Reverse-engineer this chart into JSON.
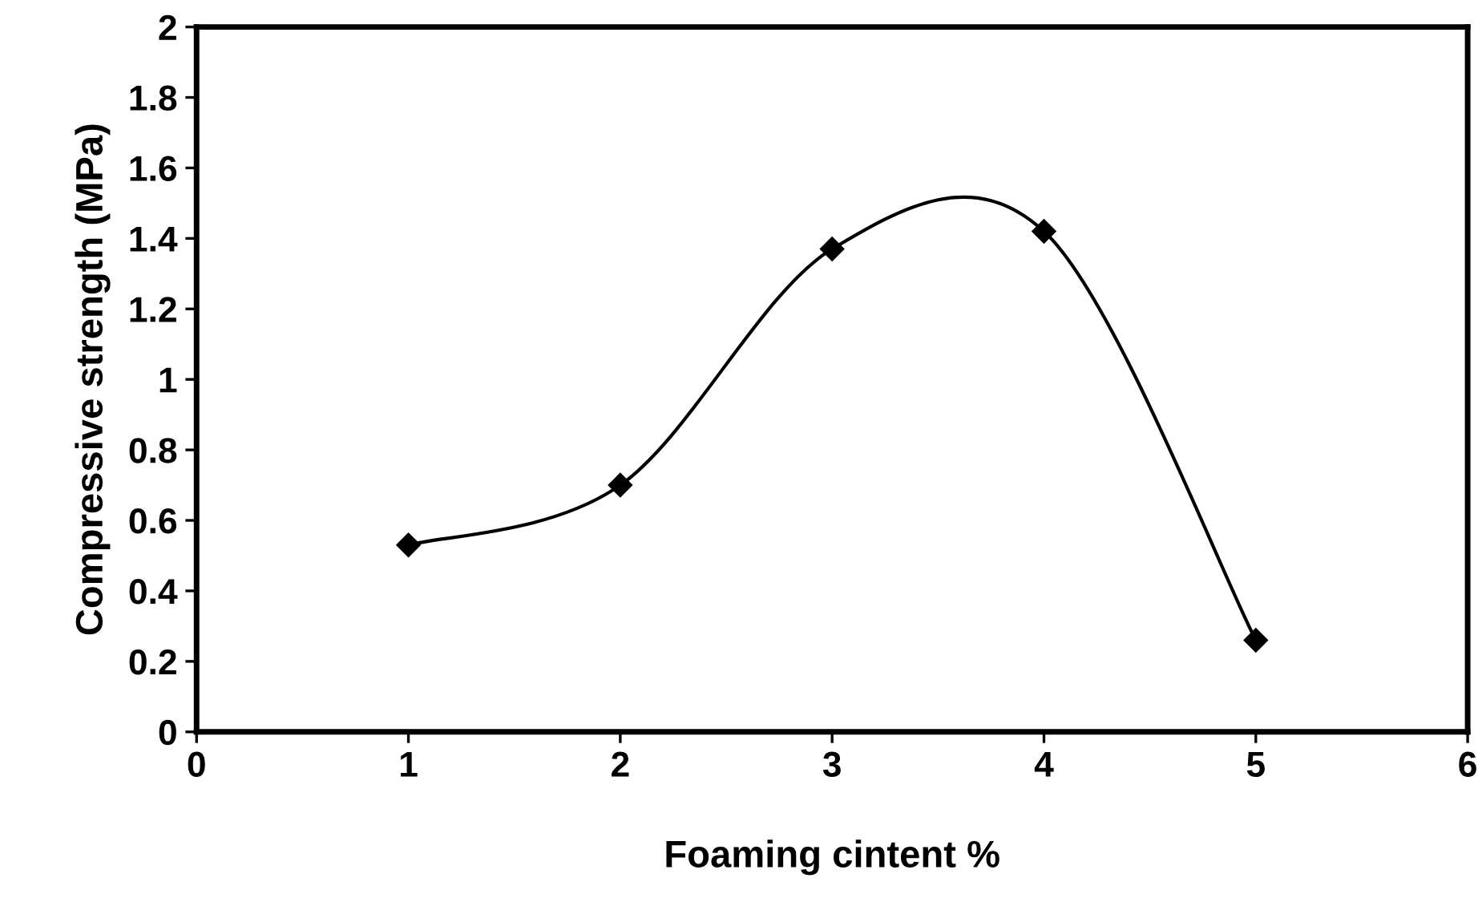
{
  "chart_data": {
    "type": "line",
    "xlabel": "Foaming cintent %",
    "ylabel": "Compressive strength (MPa)",
    "x": [
      1,
      2,
      3,
      4,
      5
    ],
    "series": [
      {
        "color": "#000000",
        "values": [
          0.53,
          0.7,
          1.37,
          1.42,
          0.26
        ]
      }
    ],
    "xlim": [
      0,
      6
    ],
    "xticks": [
      0,
      1,
      2,
      3,
      4,
      5,
      6
    ],
    "ylim": [
      0,
      2
    ],
    "yticks": [
      0,
      0.2,
      0.4,
      0.6,
      0.8,
      1,
      1.2,
      1.4,
      1.6,
      1.8,
      2
    ],
    "grid": false,
    "legend": false,
    "marker": "diamond",
    "line_style": "solid"
  }
}
